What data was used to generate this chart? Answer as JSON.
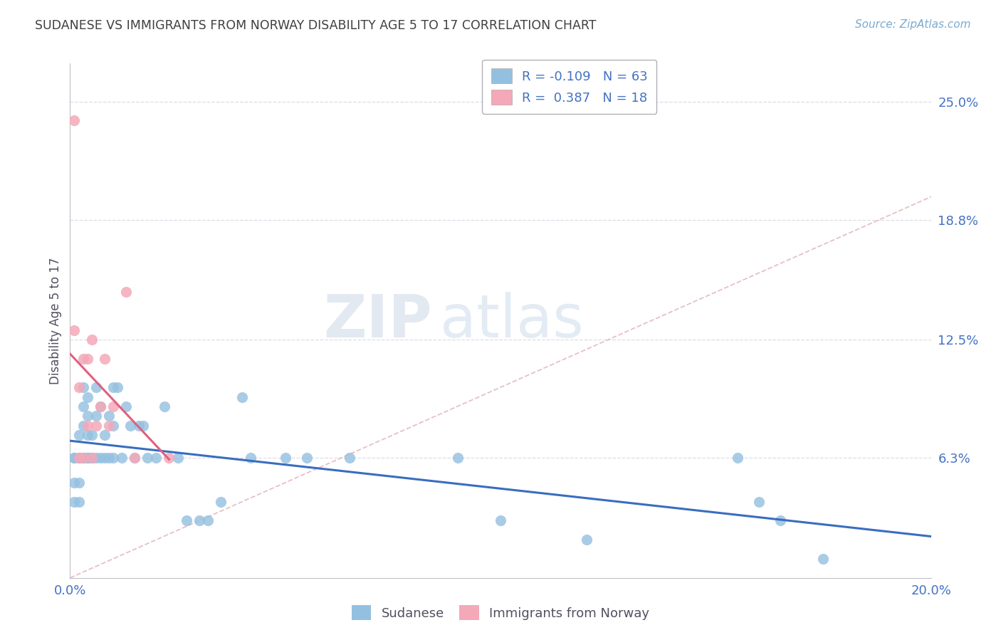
{
  "title": "SUDANESE VS IMMIGRANTS FROM NORWAY DISABILITY AGE 5 TO 17 CORRELATION CHART",
  "source": "Source: ZipAtlas.com",
  "ylabel": "Disability Age 5 to 17",
  "xlim": [
    0.0,
    0.2
  ],
  "ylim": [
    0.0,
    0.27
  ],
  "yticks": [
    0.063,
    0.125,
    0.188,
    0.25
  ],
  "ytick_labels": [
    "6.3%",
    "12.5%",
    "18.8%",
    "25.0%"
  ],
  "xticks": [
    0.0,
    0.05,
    0.1,
    0.15,
    0.2
  ],
  "xtick_labels": [
    "0.0%",
    "",
    "",
    "",
    "20.0%"
  ],
  "legend_labels": [
    "Sudanese",
    "Immigrants from Norway"
  ],
  "blue_R": "-0.109",
  "blue_N": "63",
  "pink_R": "0.387",
  "pink_N": "18",
  "blue_color": "#94c0e0",
  "pink_color": "#f4a8b8",
  "blue_line_color": "#3a6dbf",
  "pink_line_color": "#e06080",
  "diagonal_color": "#e0b0b8",
  "background": "#ffffff",
  "grid_color": "#dcdce8",
  "title_color": "#404040",
  "axis_label_color": "#4472c4",
  "watermark_zip": "ZIP",
  "watermark_atlas": "atlas",
  "blue_scatter_x": [
    0.001,
    0.001,
    0.001,
    0.001,
    0.002,
    0.002,
    0.002,
    0.002,
    0.002,
    0.003,
    0.003,
    0.003,
    0.003,
    0.003,
    0.003,
    0.004,
    0.004,
    0.004,
    0.004,
    0.004,
    0.005,
    0.005,
    0.005,
    0.005,
    0.006,
    0.006,
    0.006,
    0.007,
    0.007,
    0.008,
    0.008,
    0.009,
    0.009,
    0.01,
    0.01,
    0.01,
    0.011,
    0.012,
    0.013,
    0.014,
    0.015,
    0.016,
    0.017,
    0.018,
    0.02,
    0.022,
    0.025,
    0.027,
    0.03,
    0.032,
    0.035,
    0.04,
    0.042,
    0.05,
    0.055,
    0.065,
    0.09,
    0.1,
    0.12,
    0.155,
    0.16,
    0.165,
    0.175
  ],
  "blue_scatter_y": [
    0.063,
    0.063,
    0.05,
    0.04,
    0.063,
    0.063,
    0.075,
    0.05,
    0.04,
    0.063,
    0.063,
    0.063,
    0.08,
    0.09,
    0.1,
    0.063,
    0.063,
    0.075,
    0.085,
    0.095,
    0.063,
    0.063,
    0.063,
    0.075,
    0.063,
    0.085,
    0.1,
    0.063,
    0.09,
    0.063,
    0.075,
    0.063,
    0.085,
    0.063,
    0.08,
    0.1,
    0.1,
    0.063,
    0.09,
    0.08,
    0.063,
    0.08,
    0.08,
    0.063,
    0.063,
    0.09,
    0.063,
    0.03,
    0.03,
    0.03,
    0.04,
    0.095,
    0.063,
    0.063,
    0.063,
    0.063,
    0.063,
    0.03,
    0.02,
    0.063,
    0.04,
    0.03,
    0.01
  ],
  "pink_scatter_x": [
    0.001,
    0.001,
    0.002,
    0.002,
    0.003,
    0.003,
    0.004,
    0.004,
    0.005,
    0.005,
    0.006,
    0.007,
    0.008,
    0.009,
    0.01,
    0.013,
    0.015,
    0.023
  ],
  "pink_scatter_y": [
    0.24,
    0.13,
    0.063,
    0.1,
    0.063,
    0.115,
    0.115,
    0.08,
    0.125,
    0.063,
    0.08,
    0.09,
    0.115,
    0.08,
    0.09,
    0.15,
    0.063,
    0.063
  ]
}
